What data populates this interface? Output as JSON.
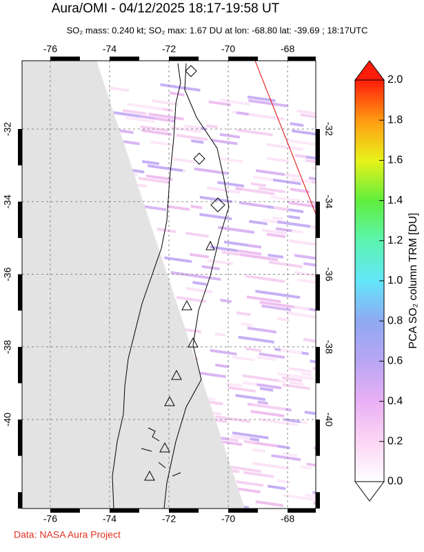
{
  "title": "Aura/OMI - 04/12/2025 18:17-19:58 UT",
  "subtitle": "SO₂ mass: 0.240 kt; SO₂ max: 1.67 DU at lon: -68.80 lat: -39.69 ; 18:17UTC",
  "map": {
    "xlim": [
      -76.95,
      -67.05
    ],
    "ylim": [
      -42.45,
      -30.12
    ],
    "xticks": [
      -76,
      -74,
      -72,
      -70,
      -68
    ],
    "yticks": [
      -32,
      -34,
      -36,
      -38,
      -40
    ]
  },
  "colorbar": {
    "label": "PCA SO₂ column TRM [DU]",
    "lim": [
      0,
      2
    ],
    "ticks": [
      {
        "value": 0,
        "label": "0.0"
      },
      0.2,
      0.4,
      0.6,
      0.8,
      {
        "value": 1,
        "label": "1.0"
      },
      1.2,
      1.4,
      1.6,
      1.8,
      {
        "value": 2,
        "label": "2.0"
      }
    ]
  },
  "footer": "Data: NASA Aura Project"
}
